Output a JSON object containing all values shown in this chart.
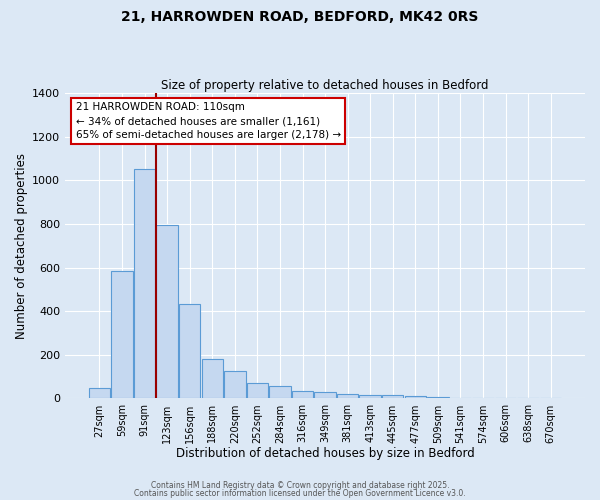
{
  "title_line1": "21, HARROWDEN ROAD, BEDFORD, MK42 0RS",
  "title_line2": "Size of property relative to detached houses in Bedford",
  "xlabel": "Distribution of detached houses by size in Bedford",
  "ylabel": "Number of detached properties",
  "bar_color": "#c5d8f0",
  "bar_edge_color": "#5b9bd5",
  "background_color": "#dce8f5",
  "fig_background_color": "#dce8f5",
  "grid_color": "#ffffff",
  "categories": [
    "27sqm",
    "59sqm",
    "91sqm",
    "123sqm",
    "156sqm",
    "188sqm",
    "220sqm",
    "252sqm",
    "284sqm",
    "316sqm",
    "349sqm",
    "381sqm",
    "413sqm",
    "445sqm",
    "477sqm",
    "509sqm",
    "541sqm",
    "574sqm",
    "606sqm",
    "638sqm",
    "670sqm"
  ],
  "values": [
    50,
    585,
    1050,
    795,
    435,
    180,
    125,
    70,
    55,
    35,
    30,
    20,
    15,
    15,
    10,
    5,
    3,
    2,
    1,
    1,
    1
  ],
  "vline_x_index": 2.5,
  "vline_color": "#990000",
  "annotation_line1": "21 HARROWDEN ROAD: 110sqm",
  "annotation_line2": "← 34% of detached houses are smaller (1,161)",
  "annotation_line3": "65% of semi-detached houses are larger (2,178) →",
  "annotation_box_color": "#ffffff",
  "annotation_box_edge": "#cc0000",
  "ylim": [
    0,
    1400
  ],
  "yticks": [
    0,
    200,
    400,
    600,
    800,
    1000,
    1200,
    1400
  ],
  "footnote1": "Contains HM Land Registry data © Crown copyright and database right 2025.",
  "footnote2": "Contains public sector information licensed under the Open Government Licence v3.0."
}
